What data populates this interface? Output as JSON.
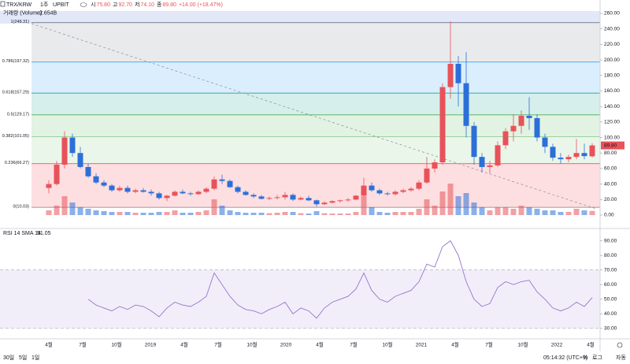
{
  "header": {
    "symbol": "TRX/KRW",
    "interval": "1주",
    "exchange": "UPBIT",
    "ohlc": [
      {
        "key": "시",
        "value": "75.80"
      },
      {
        "key": "고",
        "value": "92.70"
      },
      {
        "key": "저",
        "value": "74.10"
      },
      {
        "key": "종",
        "value": "89.80"
      }
    ],
    "change": "+14.00 (+18.47%)"
  },
  "chart_data": {
    "type": "candlestick",
    "open": [
      35,
      40,
      65,
      100,
      80,
      62,
      50,
      42,
      38,
      32,
      35,
      30,
      32,
      30,
      28,
      22,
      25,
      30,
      28,
      27,
      30,
      34,
      46,
      44,
      36,
      30,
      26,
      24,
      21,
      22,
      23,
      26,
      20,
      22,
      19,
      14,
      16,
      18,
      19,
      20,
      25,
      38,
      32,
      28,
      27,
      30,
      32,
      34,
      42,
      60,
      68,
      165,
      195,
      170,
      115,
      75,
      62,
      64,
      90,
      108,
      115,
      128,
      125,
      100,
      88,
      74,
      72,
      75,
      80,
      75.8
    ],
    "high": [
      45,
      70,
      108,
      105,
      88,
      66,
      54,
      45,
      40,
      38,
      38,
      34,
      35,
      33,
      30,
      26,
      32,
      33,
      30,
      32,
      36,
      50,
      52,
      46,
      38,
      32,
      28,
      26,
      24,
      26,
      30,
      28,
      24,
      25,
      20,
      18,
      19,
      20,
      22,
      26,
      48,
      42,
      34,
      30,
      32,
      34,
      36,
      45,
      75,
      72,
      170,
      250,
      205,
      210,
      120,
      80,
      70,
      95,
      112,
      130,
      135,
      152,
      130,
      105,
      92,
      80,
      78,
      98,
      92,
      92.7
    ],
    "low": [
      28,
      38,
      60,
      75,
      60,
      48,
      40,
      36,
      30,
      30,
      28,
      28,
      29,
      25,
      20,
      18,
      24,
      27,
      25,
      26,
      28,
      32,
      40,
      35,
      28,
      25,
      22,
      20,
      19,
      20,
      20,
      18,
      19,
      18,
      11,
      13,
      15,
      16,
      17,
      19,
      24,
      30,
      26,
      25,
      25,
      28,
      30,
      32,
      40,
      55,
      65,
      150,
      140,
      100,
      65,
      55,
      54,
      62,
      85,
      95,
      105,
      110,
      95,
      80,
      70,
      66,
      68,
      72,
      72,
      74.1
    ],
    "close": [
      40,
      65,
      100,
      80,
      62,
      50,
      42,
      38,
      32,
      35,
      30,
      32,
      30,
      28,
      22,
      25,
      30,
      28,
      27,
      30,
      34,
      46,
      44,
      36,
      30,
      26,
      24,
      21,
      22,
      23,
      26,
      20,
      22,
      19,
      14,
      16,
      18,
      19,
      20,
      25,
      38,
      32,
      28,
      27,
      30,
      32,
      34,
      42,
      60,
      68,
      165,
      195,
      170,
      115,
      75,
      62,
      64,
      90,
      108,
      115,
      128,
      125,
      100,
      88,
      74,
      72,
      75,
      80,
      76,
      89.8
    ],
    "volume": [
      3,
      6,
      12,
      8,
      5,
      4,
      3,
      2.5,
      2,
      2,
      2,
      1.5,
      1.5,
      1.5,
      2,
      2,
      3,
      1.5,
      1.5,
      2,
      3,
      10,
      6,
      3,
      2,
      1.5,
      1.5,
      1.5,
      1.2,
      1.5,
      2,
      2,
      1.2,
      1,
      2.5,
      1.2,
      1,
      1,
      1,
      2,
      12,
      5,
      2,
      1.5,
      2,
      2,
      2,
      4,
      10,
      6,
      15,
      20,
      12,
      14,
      8,
      5,
      3,
      5,
      5,
      4,
      6,
      5,
      4,
      3,
      3,
      2,
      2,
      4,
      3,
      2.654
    ],
    "up_color": "#e8525a",
    "down_color": "#2d6fd8",
    "ylim": [
      0,
      260
    ],
    "yticks": [
      {
        "value": 0,
        "label": "0.00"
      },
      {
        "value": 20,
        "label": "20.00"
      },
      {
        "value": 40,
        "label": "40.00"
      },
      {
        "value": 60,
        "label": "60.00"
      },
      {
        "value": 80,
        "label": "80.00"
      },
      {
        "value": 100,
        "label": "100.00"
      },
      {
        "value": 120,
        "label": "120.00"
      },
      {
        "value": 140,
        "label": "140.00"
      },
      {
        "value": 160,
        "label": "160.00"
      },
      {
        "value": 180,
        "label": "180.00"
      },
      {
        "value": 200,
        "label": "200.00"
      },
      {
        "value": 220,
        "label": "220.00"
      },
      {
        "value": 240,
        "label": "240.00"
      },
      {
        "value": 260,
        "label": "260.00"
      }
    ],
    "last_price": {
      "value": 89.8,
      "label": "89.80"
    },
    "volume_label": "거래량 (Volume)",
    "volume_value_label": "2.654B",
    "x_labels": [
      "4월",
      "7월",
      "10월",
      "2019",
      "4월",
      "7월",
      "10월",
      "2020",
      "4월",
      "7월",
      "10월",
      "2021",
      "4월",
      "7월",
      "10월",
      "2022",
      "4월"
    ],
    "fib_levels": [
      {
        "label": "1(248.31)",
        "value": 248.31,
        "color": "#787b86"
      },
      {
        "label": "0.786(197.32)",
        "value": 197.32,
        "color": "#2196f3"
      },
      {
        "label": "0.618(157.29)",
        "value": 157.29,
        "color": "#009688"
      },
      {
        "label": "0.5(129.17)",
        "value": 129.17,
        "color": "#4caf50"
      },
      {
        "label": "0.382(101.05)",
        "value": 101.05,
        "color": "#81c784"
      },
      {
        "label": "0.236(66.27)",
        "value": 66.27,
        "color": "#f23645"
      },
      {
        "label": "0(10.03)",
        "value": 10.03,
        "color": "#787b86"
      }
    ],
    "rsi": {
      "title": "RSI 14 SMA 14",
      "value_label": "51.05",
      "color": "#9575cd",
      "values": [
        null,
        null,
        null,
        null,
        null,
        50,
        46,
        44,
        42,
        45,
        43,
        46,
        45,
        42,
        38,
        44,
        48,
        46,
        45,
        48,
        52,
        68,
        60,
        52,
        46,
        43,
        42,
        40,
        43,
        45,
        48,
        40,
        44,
        42,
        37,
        44,
        48,
        50,
        52,
        57,
        68,
        56,
        50,
        48,
        52,
        54,
        56,
        62,
        74,
        72,
        86,
        90,
        80,
        62,
        50,
        45,
        47,
        58,
        62,
        60,
        62,
        63,
        55,
        50,
        44,
        42,
        44,
        48,
        45,
        51.05
      ],
      "band": [
        30,
        70
      ],
      "ylim": [
        24,
        93
      ],
      "yticks": [
        {
          "value": 30,
          "label": "30.00"
        },
        {
          "value": 40,
          "label": "40.00"
        },
        {
          "value": 50,
          "label": "50.00"
        },
        {
          "value": 60,
          "label": "60.00"
        },
        {
          "value": 70,
          "label": "70.00"
        },
        {
          "value": 80,
          "label": "80.00"
        },
        {
          "value": 90,
          "label": "90.00"
        }
      ]
    }
  },
  "footer": {
    "ranges": [
      "30일",
      "5일",
      "1일"
    ],
    "time": "05:14:32 (UTC+9)",
    "percent": "%",
    "log": "로그",
    "auto": "자동"
  }
}
